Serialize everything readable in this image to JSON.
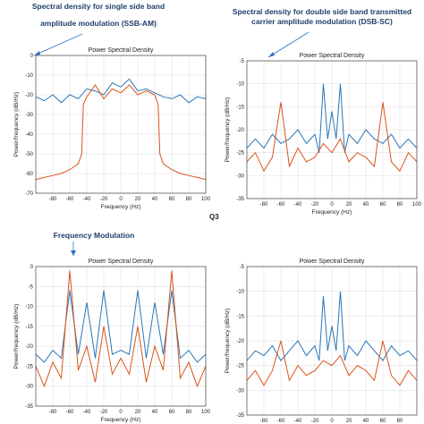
{
  "captions": {
    "ssb": [
      "Spectral density for single side band",
      "amplitude modulation (SSB-AM)"
    ],
    "dsb": [
      "Spectral density for double side band transmitted",
      "carrier amplitude modulation (DSB-SC)"
    ],
    "fm": "Frequency Modulation",
    "q3": "Q3"
  },
  "colors": {
    "blue": "#2b76b9",
    "orange": "#d95319",
    "arrow": "#2e6ec0",
    "grid": "#d9d9d9",
    "axis": "#444444"
  },
  "chart_data": [
    {
      "type": "line",
      "title": "Power Spectral Density",
      "xlabel": "Frequency (Hz)",
      "ylabel": "Power/frequency (dB/Hz)",
      "xlim": [
        -100,
        100
      ],
      "ylim": [
        -70,
        0
      ],
      "xticks": [
        -80,
        -60,
        -40,
        -20,
        0,
        20,
        40,
        60,
        80,
        100
      ],
      "yticks": [
        0,
        -10,
        -20,
        -30,
        -40,
        -50,
        -60,
        -70
      ],
      "grid": true,
      "series": [
        {
          "color": "#2b76b9",
          "x": [
            -100,
            -90,
            -80,
            -70,
            -60,
            -50,
            -40,
            -30,
            -20,
            -10,
            0,
            10,
            20,
            30,
            40,
            50,
            60,
            70,
            80,
            90,
            100
          ],
          "y": [
            -21,
            -23,
            -20,
            -24,
            -20,
            -22,
            -17,
            -18,
            -20,
            -14,
            -16,
            -12,
            -18,
            -17,
            -19,
            -21,
            -22,
            -20,
            -24,
            -21,
            -22
          ]
        },
        {
          "color": "#d95319",
          "x": [
            -100,
            -90,
            -80,
            -70,
            -60,
            -50,
            -46,
            -44,
            -40,
            -30,
            -20,
            -10,
            0,
            10,
            20,
            30,
            40,
            44,
            46,
            50,
            60,
            70,
            80,
            90,
            100
          ],
          "y": [
            -63,
            -62,
            -61,
            -60,
            -58,
            -55,
            -50,
            -25,
            -21,
            -15,
            -22,
            -17,
            -19,
            -15,
            -20,
            -18,
            -20,
            -25,
            -50,
            -55,
            -58,
            -60,
            -61,
            -62,
            -63
          ]
        }
      ]
    },
    {
      "type": "line",
      "title": "Power Spectral Density",
      "xlabel": "Frequency (Hz)",
      "ylabel": "Power/frequency (dB/Hz)",
      "xlim": [
        -100,
        100
      ],
      "ylim": [
        -35,
        -5
      ],
      "xticks": [
        -80,
        -60,
        -40,
        -20,
        0,
        20,
        40,
        60,
        80,
        100
      ],
      "yticks": [
        -5,
        -10,
        -15,
        -20,
        -25,
        -30,
        -35
      ],
      "grid": true,
      "series": [
        {
          "color": "#2b76b9",
          "x": [
            -100,
            -90,
            -80,
            -70,
            -60,
            -50,
            -40,
            -30,
            -20,
            -15,
            -10,
            -5,
            0,
            5,
            10,
            15,
            20,
            30,
            40,
            50,
            60,
            70,
            80,
            90,
            100
          ],
          "y": [
            -24,
            -22,
            -24,
            -21,
            -23,
            -22,
            -20,
            -23,
            -21,
            -25,
            -10,
            -22,
            -16,
            -22,
            -10,
            -25,
            -21,
            -23,
            -20,
            -22,
            -23,
            -21,
            -24,
            -22,
            -24
          ]
        },
        {
          "color": "#d95319",
          "x": [
            -100,
            -90,
            -80,
            -70,
            -60,
            -50,
            -40,
            -30,
            -20,
            -10,
            0,
            10,
            20,
            30,
            40,
            50,
            60,
            70,
            80,
            90,
            100
          ],
          "y": [
            -27,
            -25,
            -29,
            -26,
            -14,
            -28,
            -24,
            -27,
            -26,
            -23,
            -25,
            -22,
            -27,
            -25,
            -26,
            -28,
            -14,
            -27,
            -29,
            -25,
            -27
          ]
        }
      ]
    },
    {
      "type": "line",
      "title": "Power Spectral Density",
      "xlabel": "Frequency (Hz)",
      "ylabel": "Power/frequency (dB/Hz)",
      "xlim": [
        -100,
        100
      ],
      "ylim": [
        -35,
        0
      ],
      "xticks": [
        -80,
        -60,
        -40,
        -20,
        0,
        20,
        40,
        60,
        80,
        100
      ],
      "yticks": [
        0,
        -5,
        -10,
        -15,
        -20,
        -25,
        -30,
        -35
      ],
      "grid": true,
      "series": [
        {
          "color": "#2b76b9",
          "x": [
            -100,
            -90,
            -80,
            -70,
            -60,
            -50,
            -40,
            -30,
            -20,
            -10,
            0,
            10,
            20,
            30,
            40,
            50,
            60,
            70,
            80,
            90,
            100
          ],
          "y": [
            -22,
            -24,
            -21,
            -23,
            -6,
            -22,
            -9,
            -23,
            -6,
            -22,
            -21,
            -22,
            -6,
            -23,
            -9,
            -22,
            -6,
            -23,
            -21,
            -24,
            -22
          ]
        },
        {
          "color": "#d95319",
          "x": [
            -100,
            -90,
            -80,
            -70,
            -60,
            -50,
            -40,
            -30,
            -20,
            -10,
            0,
            10,
            20,
            30,
            40,
            50,
            60,
            70,
            80,
            90,
            100
          ],
          "y": [
            -25,
            -30,
            -24,
            -28,
            -1,
            -26,
            -20,
            -29,
            -15,
            -27,
            -23,
            -27,
            -15,
            -29,
            -20,
            -26,
            -1,
            -28,
            -24,
            -30,
            -25
          ]
        }
      ]
    },
    {
      "type": "line",
      "title": "Power Spectral Density",
      "xlabel": "Frequency (Hz)",
      "ylabel": "Power/frequency (dB/Hz)",
      "xlim": [
        -100,
        100
      ],
      "ylim": [
        -35,
        -5
      ],
      "xticks": [
        -80,
        -60,
        -40,
        -20,
        0,
        20,
        40,
        60,
        80
      ],
      "yticks": [
        -5,
        -10,
        -15,
        -20,
        -25,
        -30,
        -35
      ],
      "grid": true,
      "series": [
        {
          "color": "#2b76b9",
          "x": [
            -100,
            -90,
            -80,
            -70,
            -60,
            -50,
            -40,
            -30,
            -20,
            -15,
            -10,
            -5,
            0,
            5,
            10,
            15,
            20,
            30,
            40,
            50,
            60,
            70,
            80,
            90,
            100
          ],
          "y": [
            -24,
            -22,
            -23,
            -21,
            -24,
            -22,
            -20,
            -23,
            -21,
            -24,
            -11,
            -22,
            -17,
            -22,
            -10,
            -24,
            -21,
            -23,
            -20,
            -22,
            -24,
            -21,
            -23,
            -22,
            -24
          ]
        },
        {
          "color": "#d95319",
          "x": [
            -100,
            -90,
            -80,
            -70,
            -60,
            -50,
            -40,
            -30,
            -20,
            -10,
            0,
            10,
            20,
            30,
            40,
            50,
            60,
            70,
            80,
            90,
            100
          ],
          "y": [
            -28,
            -26,
            -29,
            -26,
            -20,
            -28,
            -25,
            -27,
            -26,
            -24,
            -25,
            -23,
            -27,
            -25,
            -26,
            -28,
            -20,
            -27,
            -29,
            -26,
            -28
          ]
        }
      ]
    }
  ]
}
